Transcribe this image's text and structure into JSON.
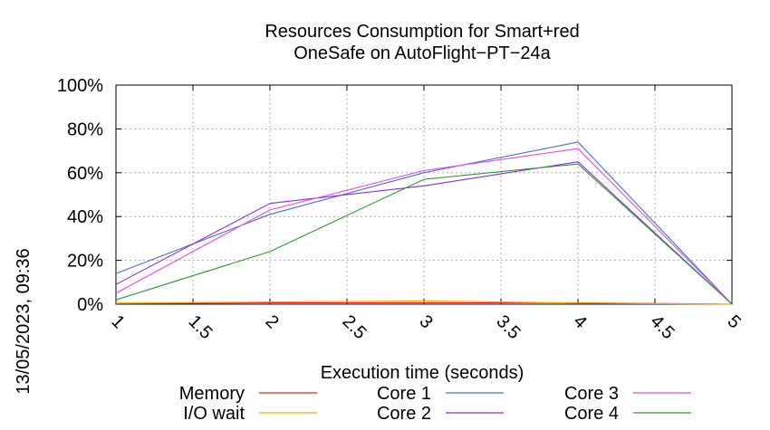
{
  "chart_data": {
    "type": "line",
    "title_lines": [
      "Resources Consumption for Smart+red",
      "OneSafe on AutoFlight−PT−24a"
    ],
    "xlabel": "Execution time (seconds)",
    "ylabel": "",
    "side_label": "13/05/2023, 09:36",
    "xlim": [
      1,
      5
    ],
    "ylim": [
      0,
      100
    ],
    "x_ticks": [
      1,
      1.5,
      2,
      2.5,
      3,
      3.5,
      4,
      4.5,
      5
    ],
    "x_tick_labels": [
      "1",
      "1.5",
      "2",
      "2.5",
      "3",
      "3.5",
      "4",
      "4.5",
      "5"
    ],
    "y_ticks": [
      0,
      20,
      40,
      60,
      80,
      100
    ],
    "y_tick_labels": [
      "0%",
      "20%",
      "40%",
      "60%",
      "80%",
      "100%"
    ],
    "grid": true,
    "legend_position": "bottom",
    "x": [
      1,
      2,
      3,
      4,
      5
    ],
    "series": [
      {
        "name": "Memory",
        "color": "#e8231a",
        "values": [
          0.2,
          0.6,
          0.6,
          0.6,
          0
        ]
      },
      {
        "name": "I/O wait",
        "color": "#f5a30c",
        "values": [
          0.5,
          1.0,
          1.5,
          0.5,
          0
        ]
      },
      {
        "name": "Core 1",
        "color": "#4472c4",
        "values": [
          14,
          41,
          60,
          74,
          0
        ]
      },
      {
        "name": "Core 2",
        "color": "#8b2be2",
        "values": [
          9,
          46,
          54,
          65,
          0
        ]
      },
      {
        "name": "Core 3",
        "color": "#ee44ee",
        "values": [
          5,
          43,
          61,
          71,
          0
        ]
      },
      {
        "name": "Core 4",
        "color": "#2a9d2a",
        "values": [
          2,
          24,
          57,
          64,
          0
        ]
      }
    ]
  }
}
